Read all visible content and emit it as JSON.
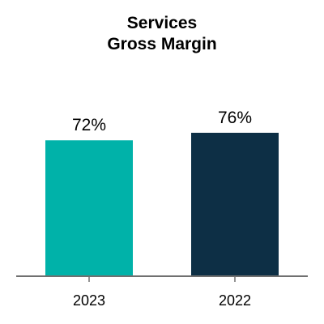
{
  "chart_data": {
    "type": "bar",
    "title_lines": [
      "Services",
      "Gross Margin"
    ],
    "categories": [
      "2023",
      "2022"
    ],
    "values": [
      72,
      76
    ],
    "value_labels": [
      "72%",
      "76%"
    ],
    "colors": [
      "#00b2a9",
      "#0d2f45"
    ],
    "axis_color": "#707070",
    "ylim": [
      0,
      100
    ],
    "grid": false,
    "legend": "none"
  }
}
